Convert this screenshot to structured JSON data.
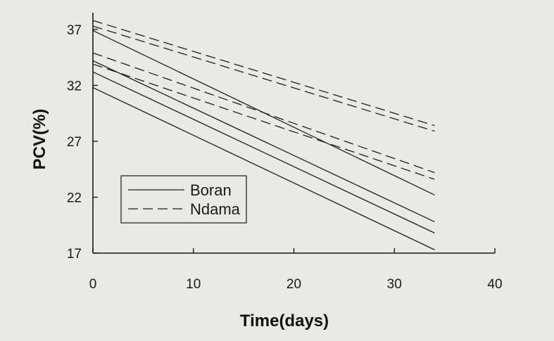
{
  "chart_data": {
    "type": "line",
    "xlabel": "Time(days)",
    "ylabel": "PCV(%)",
    "xlim": [
      0,
      40
    ],
    "ylim": [
      17,
      38.5
    ],
    "xticks": [
      0,
      10,
      20,
      30,
      40
    ],
    "yticks": [
      17,
      22,
      27,
      32,
      37
    ],
    "grid": false,
    "legend_position": "lower-left",
    "legend": [
      {
        "label": "Boran",
        "style": "solid"
      },
      {
        "label": "Ndama",
        "style": "dashed"
      }
    ],
    "series": [
      {
        "group": "Boran",
        "style": "solid",
        "x": [
          0,
          34
        ],
        "y": [
          36.9,
          22.2
        ]
      },
      {
        "group": "Boran",
        "style": "solid",
        "x": [
          0,
          34
        ],
        "y": [
          34.2,
          19.8
        ]
      },
      {
        "group": "Boran",
        "style": "solid",
        "x": [
          0,
          34
        ],
        "y": [
          33.2,
          18.8
        ]
      },
      {
        "group": "Boran",
        "style": "solid",
        "x": [
          0,
          34
        ],
        "y": [
          31.8,
          17.3
        ]
      },
      {
        "group": "Ndama",
        "style": "dashed",
        "x": [
          0,
          34
        ],
        "y": [
          37.8,
          28.4
        ]
      },
      {
        "group": "Ndama",
        "style": "dashed",
        "x": [
          0,
          34
        ],
        "y": [
          37.3,
          27.9
        ]
      },
      {
        "group": "Ndama",
        "style": "dashed",
        "x": [
          0,
          34
        ],
        "y": [
          34.9,
          24.2
        ]
      },
      {
        "group": "Ndama",
        "style": "dashed",
        "x": [
          0,
          34
        ],
        "y": [
          33.9,
          23.6
        ]
      }
    ]
  }
}
